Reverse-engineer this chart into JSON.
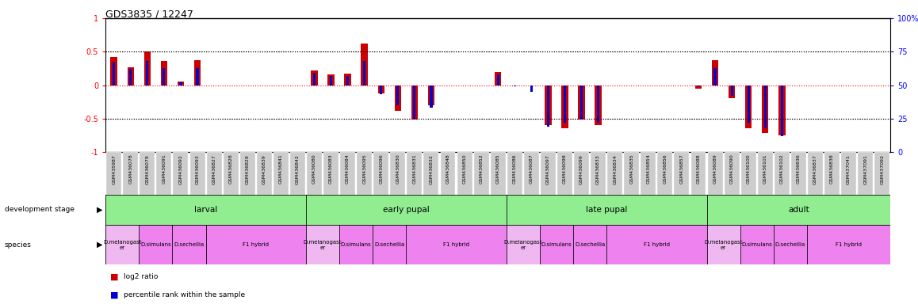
{
  "title": "GDS3835 / 12247",
  "samples": [
    "GSM435987",
    "GSM436078",
    "GSM436079",
    "GSM436091",
    "GSM436092",
    "GSM436093",
    "GSM436827",
    "GSM436828",
    "GSM436829",
    "GSM436839",
    "GSM436841",
    "GSM436842",
    "GSM436080",
    "GSM436083",
    "GSM436084",
    "GSM436095",
    "GSM436096",
    "GSM436830",
    "GSM436831",
    "GSM436832",
    "GSM436848",
    "GSM436850",
    "GSM436852",
    "GSM436085",
    "GSM436086",
    "GSM436087",
    "GSM436097",
    "GSM436098",
    "GSM436099",
    "GSM436833",
    "GSM436834",
    "GSM436835",
    "GSM436854",
    "GSM436856",
    "GSM436857",
    "GSM436088",
    "GSM436089",
    "GSM436090",
    "GSM436100",
    "GSM436101",
    "GSM436102",
    "GSM436836",
    "GSM436837",
    "GSM436838",
    "GSM437041",
    "GSM437091",
    "GSM437092"
  ],
  "log2_ratio": [
    0.42,
    0.27,
    0.5,
    0.36,
    0.05,
    0.37,
    0.0,
    0.0,
    0.0,
    0.0,
    0.0,
    0.0,
    0.22,
    0.16,
    0.17,
    0.62,
    -0.12,
    -0.38,
    -0.52,
    -0.3,
    0.0,
    0.0,
    0.0,
    0.2,
    0.0,
    0.0,
    -0.6,
    -0.65,
    -0.52,
    -0.6,
    0.0,
    0.0,
    0.0,
    0.0,
    0.0,
    -0.05,
    0.37,
    -0.2,
    -0.65,
    -0.72,
    -0.75,
    0.0,
    0.0,
    0.0,
    0.0,
    0.0,
    0.0
  ],
  "percentile": [
    67,
    62,
    68,
    63,
    52,
    63,
    50,
    50,
    50,
    50,
    50,
    50,
    59,
    57,
    57,
    68,
    43,
    35,
    25,
    33,
    50,
    50,
    50,
    58,
    49,
    45,
    19,
    22,
    24,
    22,
    50,
    50,
    50,
    50,
    50,
    49,
    63,
    42,
    22,
    18,
    12,
    50,
    50,
    50,
    50,
    50,
    50
  ],
  "dev_stages": [
    {
      "label": "larval",
      "start": 0,
      "end": 11
    },
    {
      "label": "early pupal",
      "start": 12,
      "end": 23
    },
    {
      "label": "late pupal",
      "start": 24,
      "end": 35
    },
    {
      "label": "adult",
      "start": 36,
      "end": 46
    }
  ],
  "species_groups": [
    {
      "label": "D.melanogast\ner",
      "start": 0,
      "end": 1,
      "color": "#f0b8f0"
    },
    {
      "label": "D.simulans",
      "start": 2,
      "end": 3,
      "color": "#ee82ee"
    },
    {
      "label": "D.sechellia",
      "start": 4,
      "end": 5,
      "color": "#ee82ee"
    },
    {
      "label": "F1 hybrid",
      "start": 6,
      "end": 11,
      "color": "#ee82ee"
    },
    {
      "label": "D.melanogast\ner",
      "start": 12,
      "end": 13,
      "color": "#f0b8f0"
    },
    {
      "label": "D.simulans",
      "start": 14,
      "end": 15,
      "color": "#ee82ee"
    },
    {
      "label": "D.sechellia",
      "start": 16,
      "end": 17,
      "color": "#ee82ee"
    },
    {
      "label": "F1 hybrid",
      "start": 18,
      "end": 23,
      "color": "#ee82ee"
    },
    {
      "label": "D.melanogast\ner",
      "start": 24,
      "end": 25,
      "color": "#f0b8f0"
    },
    {
      "label": "D.simulans",
      "start": 26,
      "end": 27,
      "color": "#ee82ee"
    },
    {
      "label": "D.sechellia",
      "start": 28,
      "end": 29,
      "color": "#ee82ee"
    },
    {
      "label": "F1 hybrid",
      "start": 30,
      "end": 35,
      "color": "#ee82ee"
    },
    {
      "label": "D.melanogast\ner",
      "start": 36,
      "end": 37,
      "color": "#f0b8f0"
    },
    {
      "label": "D.simulans",
      "start": 38,
      "end": 39,
      "color": "#ee82ee"
    },
    {
      "label": "D.sechellia",
      "start": 40,
      "end": 41,
      "color": "#ee82ee"
    },
    {
      "label": "F1 hybrid",
      "start": 42,
      "end": 46,
      "color": "#ee82ee"
    }
  ],
  "bar_color_red": "#cc0000",
  "bar_color_blue": "#0000cc",
  "dev_color": "#90ee90",
  "tick_bg_color": "#cccccc",
  "legend_red_label": "log2 ratio",
  "legend_blue_label": "percentile rank within the sample"
}
